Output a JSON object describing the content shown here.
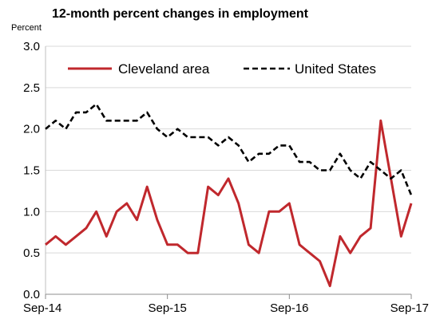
{
  "chart_data": {
    "type": "line",
    "title": "12-month percent changes in employment",
    "ylabel": "Percent",
    "xlabel": "",
    "ylim": [
      0.0,
      3.0
    ],
    "yticks": [
      "0.0",
      "0.5",
      "1.0",
      "1.5",
      "2.0",
      "2.5",
      "3.0"
    ],
    "x_start": "Sep-14",
    "x_end": "Sep-17",
    "xtick_labels": [
      "Sep-14",
      "Sep-15",
      "Sep-16",
      "Sep-17"
    ],
    "xtick_months": [
      0,
      12,
      24,
      36
    ],
    "grid": true,
    "legend": "top",
    "series": [
      {
        "name": "Cleveland area",
        "color": "#c0282d",
        "style": "solid",
        "values": [
          0.6,
          0.7,
          0.6,
          0.7,
          0.8,
          1.0,
          0.7,
          1.0,
          1.1,
          0.9,
          1.3,
          0.9,
          0.6,
          0.6,
          0.5,
          0.5,
          1.3,
          1.2,
          1.4,
          1.1,
          0.6,
          0.5,
          1.0,
          1.0,
          1.1,
          0.6,
          0.5,
          0.4,
          0.1,
          0.7,
          0.5,
          0.7,
          0.8,
          2.1,
          1.4,
          0.7,
          1.1
        ]
      },
      {
        "name": "United States",
        "color": "#000000",
        "style": "dashed",
        "values": [
          2.0,
          2.1,
          2.0,
          2.2,
          2.2,
          2.3,
          2.1,
          2.1,
          2.1,
          2.1,
          2.2,
          2.0,
          1.9,
          2.0,
          1.9,
          1.9,
          1.9,
          1.8,
          1.9,
          1.8,
          1.6,
          1.7,
          1.7,
          1.8,
          1.8,
          1.6,
          1.6,
          1.5,
          1.5,
          1.7,
          1.5,
          1.4,
          1.6,
          1.5,
          1.4,
          1.5,
          1.2
        ]
      }
    ]
  }
}
